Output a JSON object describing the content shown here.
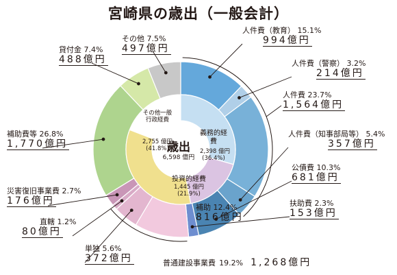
{
  "title": "宮崎県の歳出（一般会計）",
  "chart_data": {
    "type": "pie",
    "unit": "億円",
    "center": {
      "label": "歳出",
      "total": "6,598 億円"
    },
    "inner_groups": [
      {
        "name": "義務的経費",
        "amount": "2,398 億円",
        "pct": "(36.4%)",
        "value": 2398,
        "color": "#c5dff2"
      },
      {
        "name": "投資的経費",
        "amount": "1,445 億円",
        "pct": "(21.9%)",
        "value": 1445,
        "color": "#dbc4e2"
      },
      {
        "name": "その他一般行政経費",
        "amount": "2,755 億円",
        "pct": "(41.8%)",
        "value": 2755,
        "color": "#f0e08e"
      }
    ],
    "slices": [
      {
        "name": "人件費（教育）",
        "pct": "15.1%",
        "amount": "994億円",
        "value": 994,
        "group": 0,
        "color": "#64a8db"
      },
      {
        "name": "人件費（警察）",
        "pct": "3.2%",
        "amount": "214億円",
        "value": 214,
        "group": 0,
        "color": "#b0cfe8"
      },
      {
        "name": "人件費",
        "pct": "23.7%",
        "amount": "1,564億円",
        "value": 1564,
        "group": 0,
        "color": "#78b1d8"
      },
      {
        "name": "人件費（知事部局等）",
        "pct": "5.4%",
        "amount": "357億円",
        "value": 357,
        "group": 0,
        "color": "#6aa3cc"
      },
      {
        "name": "公債費",
        "pct": "10.3%",
        "amount": "681億円",
        "value": 681,
        "group": 0,
        "color": "#4a84b2"
      },
      {
        "name": "扶助費",
        "pct": "2.3%",
        "amount": "153億円",
        "value": 153,
        "group": 0,
        "color": "#6e8ed0"
      },
      {
        "name": "補助",
        "pct": "12.4%",
        "amount": "816億円",
        "value": 816,
        "group": 1,
        "color": "#f2c9de"
      },
      {
        "name": "単独",
        "pct": "5.6%",
        "amount": "372億円",
        "value": 372,
        "group": 1,
        "color": "#e3b6cf"
      },
      {
        "name": "直轄",
        "pct": "1.2%",
        "amount": "80億円",
        "value": 80,
        "group": 1,
        "color": "#d8aac6"
      },
      {
        "name": "災害復旧事業費",
        "pct": "2.7%",
        "amount": "176億円",
        "value": 176,
        "group": 1,
        "color": "#c996b7"
      },
      {
        "name": "補助費等",
        "pct": "26.8%",
        "amount": "1,770億円",
        "value": 1770,
        "group": 2,
        "color": "#aed48e"
      },
      {
        "name": "貸付金",
        "pct": "7.4%",
        "amount": "488億円",
        "value": 488,
        "group": 2,
        "color": "#d5e8a8"
      },
      {
        "name": "その他",
        "pct": "7.5%",
        "amount": "497億円",
        "value": 497,
        "group": 2,
        "color": "#c8c8c8"
      }
    ],
    "composite_label": {
      "name": "普通建設事業費",
      "pct": "19.2%",
      "amount": "1,268億円"
    }
  }
}
